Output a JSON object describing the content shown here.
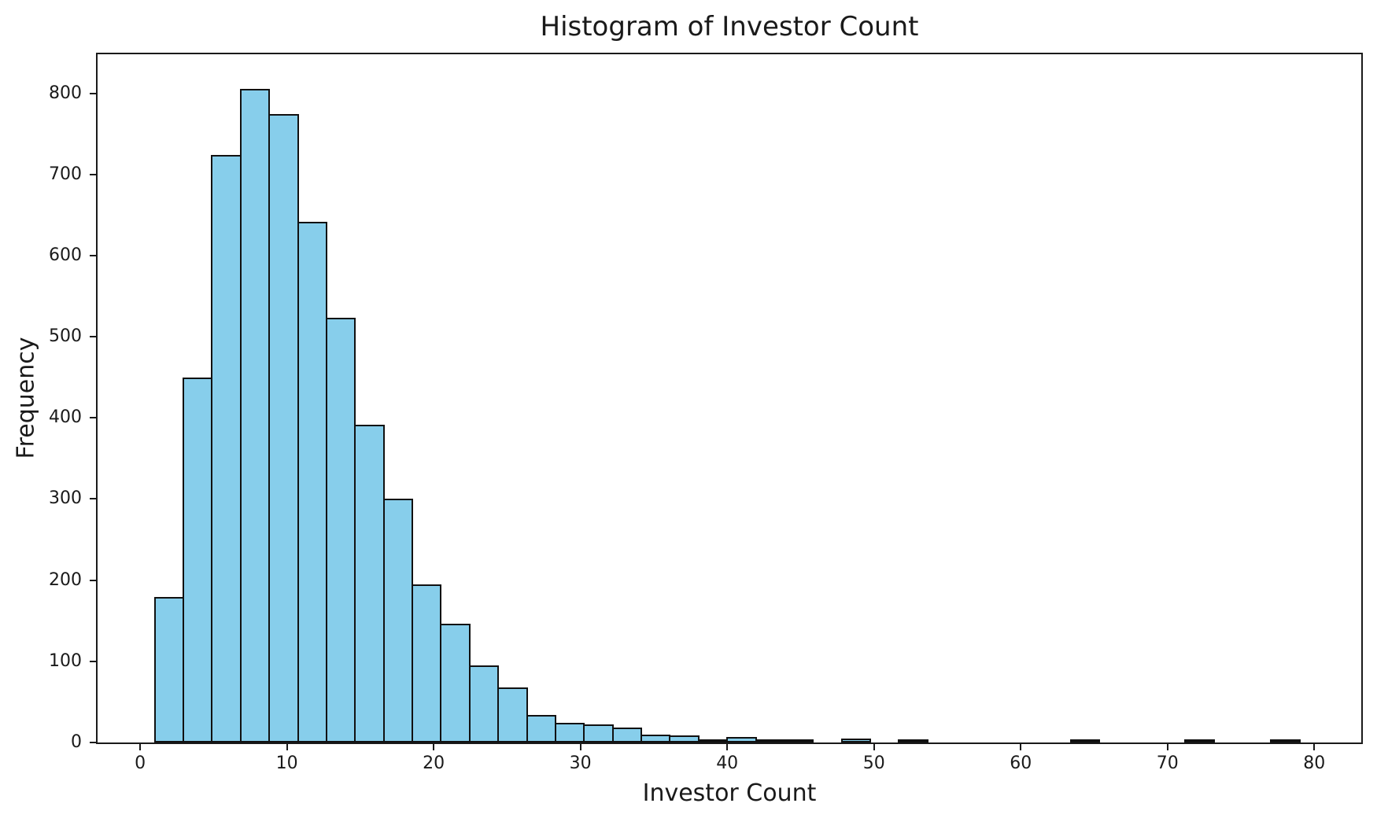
{
  "figure": {
    "title": "Histogram of Investor Count",
    "xlabel": "Investor Count",
    "ylabel": "Frequency"
  },
  "colors": {
    "background": "#ffffff",
    "bar_fill": "#87CEEB",
    "bar_edge": "#111111",
    "axis_line": "#1a1a1a",
    "text": "#1a1a1a"
  },
  "chart_data": {
    "type": "bar",
    "subtype": "histogram",
    "title": "Histogram of Investor Count",
    "xlabel": "Investor Count",
    "ylabel": "Frequency",
    "grid": false,
    "legend": null,
    "bin_start": 1.0,
    "bin_width": 1.95,
    "n_bins": 40,
    "bin_edges": [
      1.0,
      2.95,
      4.9,
      6.85,
      8.8,
      10.75,
      12.7,
      14.65,
      16.6,
      18.55,
      20.5,
      22.45,
      24.4,
      26.35,
      28.3,
      30.25,
      32.2,
      34.15,
      36.1,
      38.05,
      40.0,
      41.95,
      43.9,
      45.85,
      47.8,
      49.75,
      51.7,
      53.65,
      55.6,
      57.55,
      59.5,
      61.45,
      63.4,
      65.35,
      67.3,
      69.25,
      71.2,
      73.15,
      75.1,
      77.05,
      79.0
    ],
    "counts": [
      179,
      450,
      724,
      805,
      774,
      642,
      523,
      392,
      300,
      195,
      146,
      95,
      68,
      34,
      24,
      22,
      18,
      10,
      9,
      4,
      7,
      3,
      2,
      0,
      5,
      0,
      2,
      0,
      0,
      0,
      0,
      0,
      2,
      0,
      0,
      0,
      2,
      0,
      0,
      2
    ],
    "x_ticks": [
      0,
      10,
      20,
      30,
      40,
      50,
      60,
      70,
      80
    ],
    "y_ticks": [
      0,
      100,
      200,
      300,
      400,
      500,
      600,
      700,
      800
    ],
    "xlim": [
      -2.9,
      83.2
    ],
    "ylim": [
      0,
      848
    ]
  }
}
